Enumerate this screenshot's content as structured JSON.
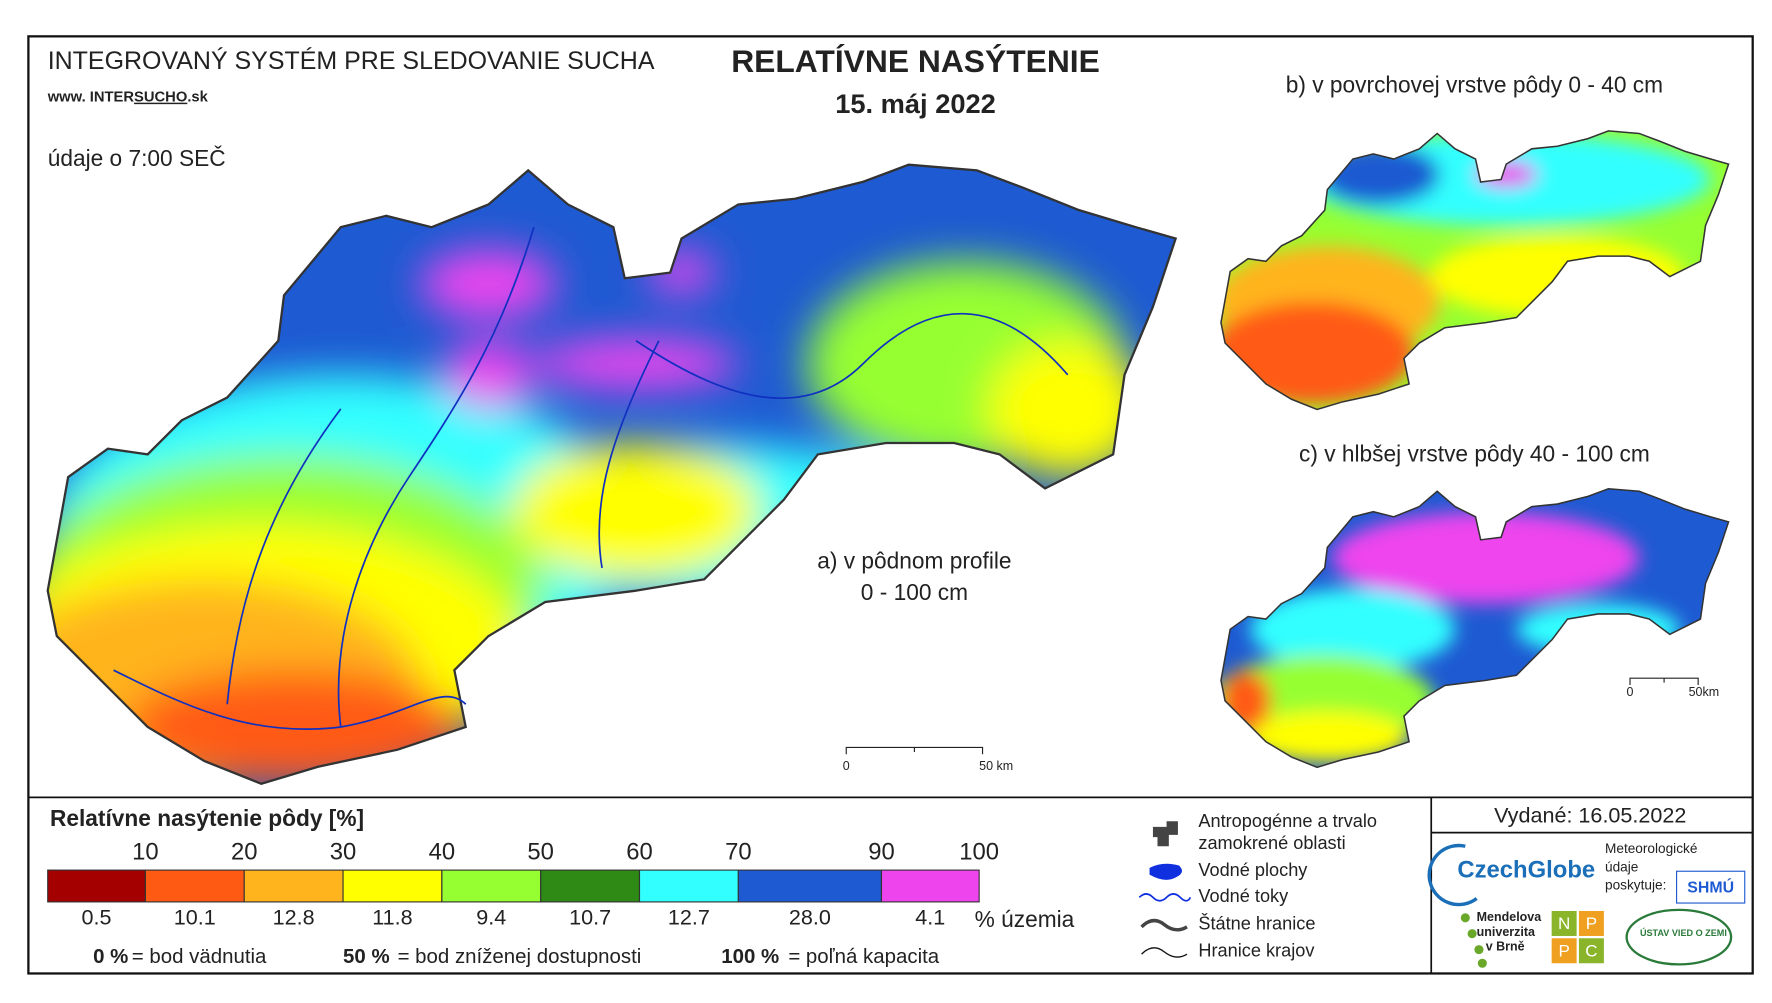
{
  "header": {
    "system": "INTEGROVANÝ SYSTÉM PRE SLEDOVANIE SUCHA",
    "url": [
      "www. INTER",
      "SUCHO",
      ".sk"
    ],
    "note": "údaje o 7:00 SEČ"
  },
  "title": "RELATÍVNE NASÝTENIE",
  "date": "15. máj 2022",
  "maps": {
    "a": [
      "a) v pôdnom profile",
      "0 - 100 cm"
    ],
    "b": "b) v povrchovej vrstve pôdy 0 - 40 cm",
    "c": "c) v hlbšej vrstve pôdy 40 - 100 cm",
    "scale_main": [
      "0",
      "50 km"
    ],
    "scale_small": [
      "0",
      "50km"
    ]
  },
  "legend": {
    "title": "Relatívne nasýtenie pôdy [%]",
    "thresholds": [
      10,
      20,
      30,
      40,
      50,
      60,
      70,
      90,
      100
    ],
    "shares": [
      "0.5",
      "10.1",
      "12.8",
      "11.8",
      "9.4",
      "10.7",
      "12.7",
      "28.0",
      "4.1"
    ],
    "shares_unit": "% územia",
    "colors": [
      "#a50000",
      "#ff5a14",
      "#ffb41e",
      "#ffff00",
      "#96ff32",
      "#2e8a14",
      "#32ffff",
      "#1e5ad2",
      "#ee44ee"
    ],
    "notes": [
      [
        "0 %",
        "= bod vädnutia"
      ],
      [
        "50 %",
        "= bod zníženej dostupnosti"
      ],
      [
        "100 %",
        "= poľná kapacita"
      ]
    ]
  },
  "symbols": [
    [
      "Antropogénne a trvalo",
      "zamokrené oblasti"
    ],
    [
      "Vodné plochy"
    ],
    [
      "Vodné toky"
    ],
    [
      "Štátne hranice"
    ],
    [
      "Hranice krajov"
    ]
  ],
  "issued": "Vydané: 16.05.2022",
  "logos": {
    "czechglobe": "CzechGlobe",
    "meteo": [
      "Meteorologické",
      "údaje",
      "poskytuje:"
    ],
    "shmu": "SHMÚ",
    "mendel": [
      "Mendelova",
      "univerzita",
      "v Brně"
    ],
    "nppc": [
      "N",
      "P",
      "P",
      "C"
    ],
    "uvz": "ÚSTAV VIED O ZEMI"
  }
}
